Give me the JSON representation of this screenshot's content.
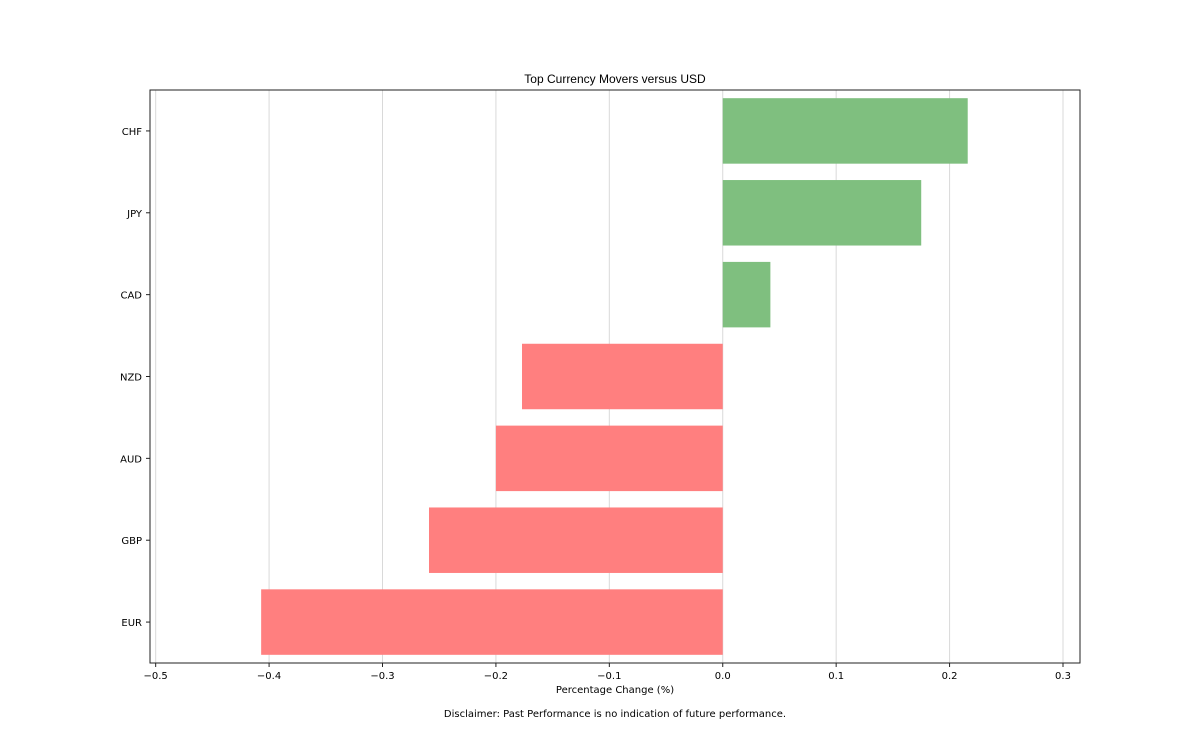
{
  "chart_data": {
    "type": "bar",
    "orientation": "horizontal",
    "title": "Top Currency Movers versus USD",
    "xlabel": "Percentage Change (%)",
    "ylabel": "",
    "xlim": [
      -0.505,
      0.315
    ],
    "xticks": [
      -0.5,
      -0.4,
      -0.3,
      -0.2,
      -0.1,
      0.0,
      0.1,
      0.2,
      0.3
    ],
    "xtick_labels": [
      "−0.5",
      "−0.4",
      "−0.3",
      "−0.2",
      "−0.1",
      "0.0",
      "0.1",
      "0.2",
      "0.3"
    ],
    "grid": "vertical",
    "categories": [
      "CHF",
      "JPY",
      "CAD",
      "NZD",
      "AUD",
      "GBP",
      "EUR"
    ],
    "values": [
      0.216,
      0.175,
      0.042,
      -0.177,
      -0.2,
      -0.259,
      -0.407
    ],
    "positive_color": "#7fbf7f",
    "negative_color": "#ff7f7f"
  },
  "footer": {
    "disclaimer": "Disclaimer: Past Performance is no indication of future performance."
  }
}
